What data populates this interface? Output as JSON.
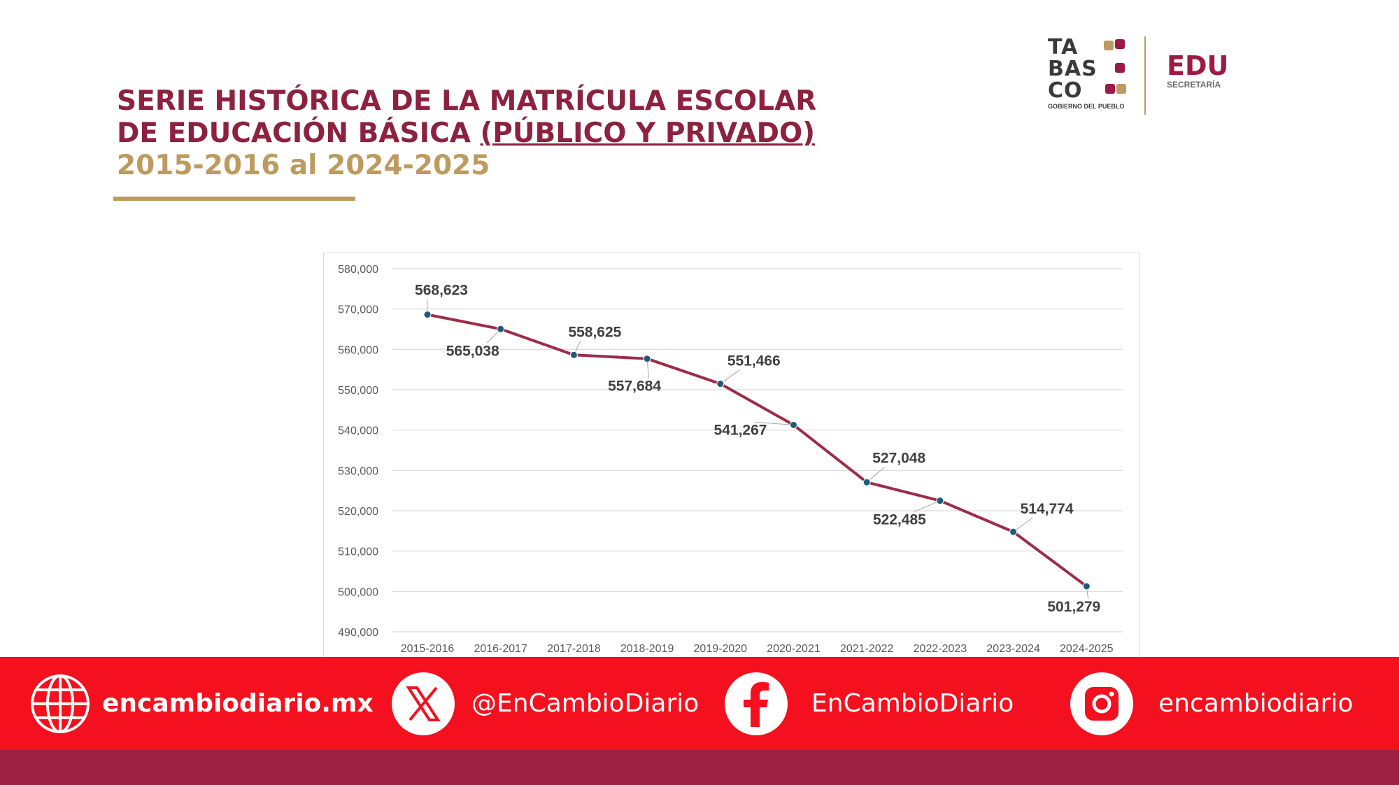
{
  "header": {
    "title_line1": "SERIE HISTÓRICA DE LA MATRÍCULA ESCOLAR",
    "title_line2_plain": "DE EDUCACIÓN BÁSICA ",
    "title_line2_underlined": "(PÚBLICO Y PRIVADO)",
    "title_years": "2015-2016 al 2024-2025"
  },
  "logo": {
    "tabasco_word": "TA\nBAS\nCO",
    "tabasco_sub": "GOBIERNO DEL PUEBLO",
    "edu_word": "EDU",
    "edu_sub": "SECRETARÍA"
  },
  "colors": {
    "title": "#8c2240",
    "gold": "#bd9a5f",
    "line": "#9b2c4a",
    "marker": "#1f5a7a",
    "social_bar": "#f4101e",
    "bottom_band": "#9e2145"
  },
  "chart_data": {
    "type": "line",
    "categories": [
      "2015-2016",
      "2016-2017",
      "2017-2018",
      "2018-2019",
      "2019-2020",
      "2020-2021",
      "2021-2022",
      "2022-2023",
      "2023-2024",
      "2024-2025"
    ],
    "values": [
      568623,
      565038,
      558625,
      557684,
      551466,
      541267,
      527048,
      522485,
      514774,
      501279
    ],
    "data_labels": [
      "568,623",
      "565,038",
      "558,625",
      "557,684",
      "551,466",
      "541,267",
      "527,048",
      "522,485",
      "514,774",
      "501,279"
    ],
    "ylim": [
      490000,
      580000
    ],
    "y_ticks": [
      490000,
      500000,
      510000,
      520000,
      530000,
      540000,
      550000,
      560000,
      570000,
      580000
    ],
    "y_tick_labels": [
      "490,000",
      "500,000",
      "510,000",
      "520,000",
      "530,000",
      "540,000",
      "550,000",
      "560,000",
      "570,000",
      "580,000"
    ],
    "grid": true,
    "title": "",
    "xlabel": "",
    "ylabel": ""
  },
  "social": {
    "website": "encambiodiario.mx",
    "x_handle": "@EnCambioDiario",
    "facebook": "EnCambioDiario",
    "instagram": "encambiodiario",
    "icons": [
      "globe-icon",
      "x-icon",
      "facebook-icon",
      "instagram-icon"
    ]
  }
}
